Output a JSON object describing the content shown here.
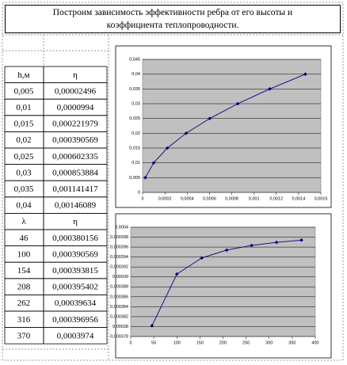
{
  "header": {
    "title": "Построим зависимость эффективности ребра от его высоты и коэффициента теплопроводности."
  },
  "table": {
    "rows": [
      [
        "h,м",
        "η"
      ],
      [
        "0,005",
        "0,00002496"
      ],
      [
        "0,01",
        "0,0000994"
      ],
      [
        "0,015",
        "0,000221979"
      ],
      [
        "0,02",
        "0,000390569"
      ],
      [
        "0,025",
        "0,000602335"
      ],
      [
        "0,03",
        "0,000853884"
      ],
      [
        "0,035",
        "0,001141417"
      ],
      [
        "0,04",
        "0,00146089"
      ],
      [
        "λ",
        "η"
      ],
      [
        "46",
        "0,000380156"
      ],
      [
        "100",
        "0,000390569"
      ],
      [
        "154",
        "0,000393815"
      ],
      [
        "208",
        "0,000395402"
      ],
      [
        "262",
        "0,00039634"
      ],
      [
        "316",
        "0,000396956"
      ],
      [
        "370",
        "0,0003974"
      ]
    ]
  },
  "chart_data": [
    {
      "type": "line",
      "color": "#000080",
      "x": [
        2.496e-05,
        9.94e-05,
        0.000221979,
        0.000390569,
        0.000602335,
        0.000853884,
        0.001141417,
        0.00146089
      ],
      "values": [
        0.005,
        0.01,
        0.015,
        0.02,
        0.025,
        0.03,
        0.035,
        0.04
      ],
      "xlim": [
        0,
        0.0016
      ],
      "xticks": [
        0,
        {
          "value": 0.0002,
          "label": "0,0002"
        },
        {
          "value": 0.0004,
          "label": "0,0004"
        },
        {
          "value": 0.0006,
          "label": "0,0006"
        },
        {
          "value": 0.0008,
          "label": "0,0008"
        },
        {
          "value": 0.001,
          "label": "0,001"
        },
        {
          "value": 0.0012,
          "label": "0,0012"
        },
        {
          "value": 0.0014,
          "label": "0,0014"
        },
        {
          "value": 0.0016,
          "label": "0,0016"
        }
      ],
      "ylim": [
        0,
        0.045
      ],
      "yticks": [
        0,
        {
          "value": 0.005,
          "label": "0,005"
        },
        {
          "value": 0.01,
          "label": "0,01"
        },
        {
          "value": 0.015,
          "label": "0,015"
        },
        {
          "value": 0.02,
          "label": "0,02"
        },
        {
          "value": 0.025,
          "label": "0,025"
        },
        {
          "value": 0.03,
          "label": "0,03"
        },
        {
          "value": 0.035,
          "label": "0,035"
        },
        {
          "value": 0.04,
          "label": "0,04"
        },
        {
          "value": 0.045,
          "label": "0,045"
        }
      ],
      "grid": true
    },
    {
      "type": "line",
      "color": "#000080",
      "x": [
        46,
        100,
        154,
        208,
        262,
        316,
        370
      ],
      "values": [
        0.000380156,
        0.000390569,
        0.000393815,
        0.000395402,
        0.00039634,
        0.000396956,
        0.0003974
      ],
      "xlim": [
        0,
        400
      ],
      "xticks": [
        0,
        50,
        100,
        150,
        200,
        250,
        300,
        350,
        400
      ],
      "ylim": [
        0.000378,
        0.0004
      ],
      "yticks": [
        {
          "value": 0.000378,
          "label": "0,000378"
        },
        {
          "value": 0.00038,
          "label": "0,00038"
        },
        {
          "value": 0.000382,
          "label": "0,000382"
        },
        {
          "value": 0.000384,
          "label": "0,000384"
        },
        {
          "value": 0.000386,
          "label": "0,000386"
        },
        {
          "value": 0.000388,
          "label": "0,000388"
        },
        {
          "value": 0.00039,
          "label": "0,00039"
        },
        {
          "value": 0.000392,
          "label": "0,000392"
        },
        {
          "value": 0.000394,
          "label": "0,000394"
        },
        {
          "value": 0.000396,
          "label": "0,000396"
        },
        {
          "value": 0.000398,
          "label": "0,000398"
        },
        {
          "value": 0.0004,
          "label": "0,0004"
        }
      ],
      "grid": true
    }
  ]
}
